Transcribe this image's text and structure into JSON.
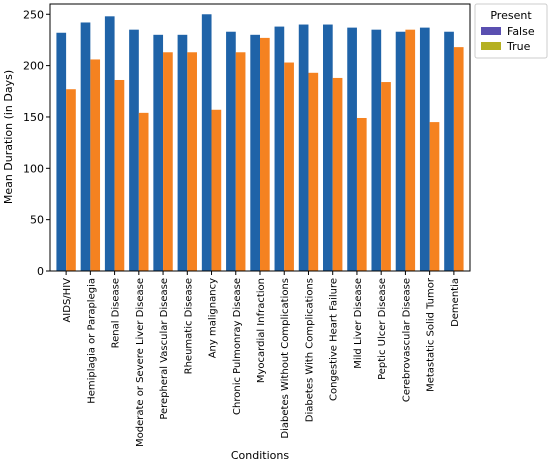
{
  "chart_data": {
    "type": "bar",
    "title": "",
    "xlabel": "Conditions",
    "ylabel": "Mean Duration (in Days)",
    "ylim": [
      0,
      260
    ],
    "yticks": [
      0,
      50,
      100,
      150,
      200,
      250
    ],
    "grid": false,
    "legend": {
      "title": "Present",
      "placement": "top-right-outside"
    },
    "categories": [
      "AIDS/HIV",
      "Hemiplagia or Paraplegia",
      "Renal Disease",
      "Moderate or Severe Liver Disease",
      "Perepheral Vascular Disease",
      "Rheumatic Disease",
      "Any malignancy",
      "Chronic Pulmonray Disease",
      "Myocardial Infraction",
      "Diabetes Without Complications",
      "Diabetes With Complications",
      "Congestive Heart Failure",
      "Mild Liver Disease",
      "Peptic Ulcer Disease",
      "Cerebrovascular Disease",
      "Metastatic Solid Tumor",
      "Dementia"
    ],
    "series": [
      {
        "name": "False",
        "color": "#1f63a8",
        "legend_color": "#5a4fb0",
        "values": [
          232,
          242,
          248,
          235,
          230,
          230,
          250,
          233,
          230,
          238,
          240,
          240,
          237,
          235,
          233,
          237,
          233
        ]
      },
      {
        "name": "True",
        "color": "#f58220",
        "legend_color": "#b5b021",
        "values": [
          177,
          206,
          186,
          154,
          213,
          213,
          157,
          213,
          227,
          203,
          193,
          188,
          149,
          184,
          235,
          145,
          218
        ]
      }
    ]
  }
}
